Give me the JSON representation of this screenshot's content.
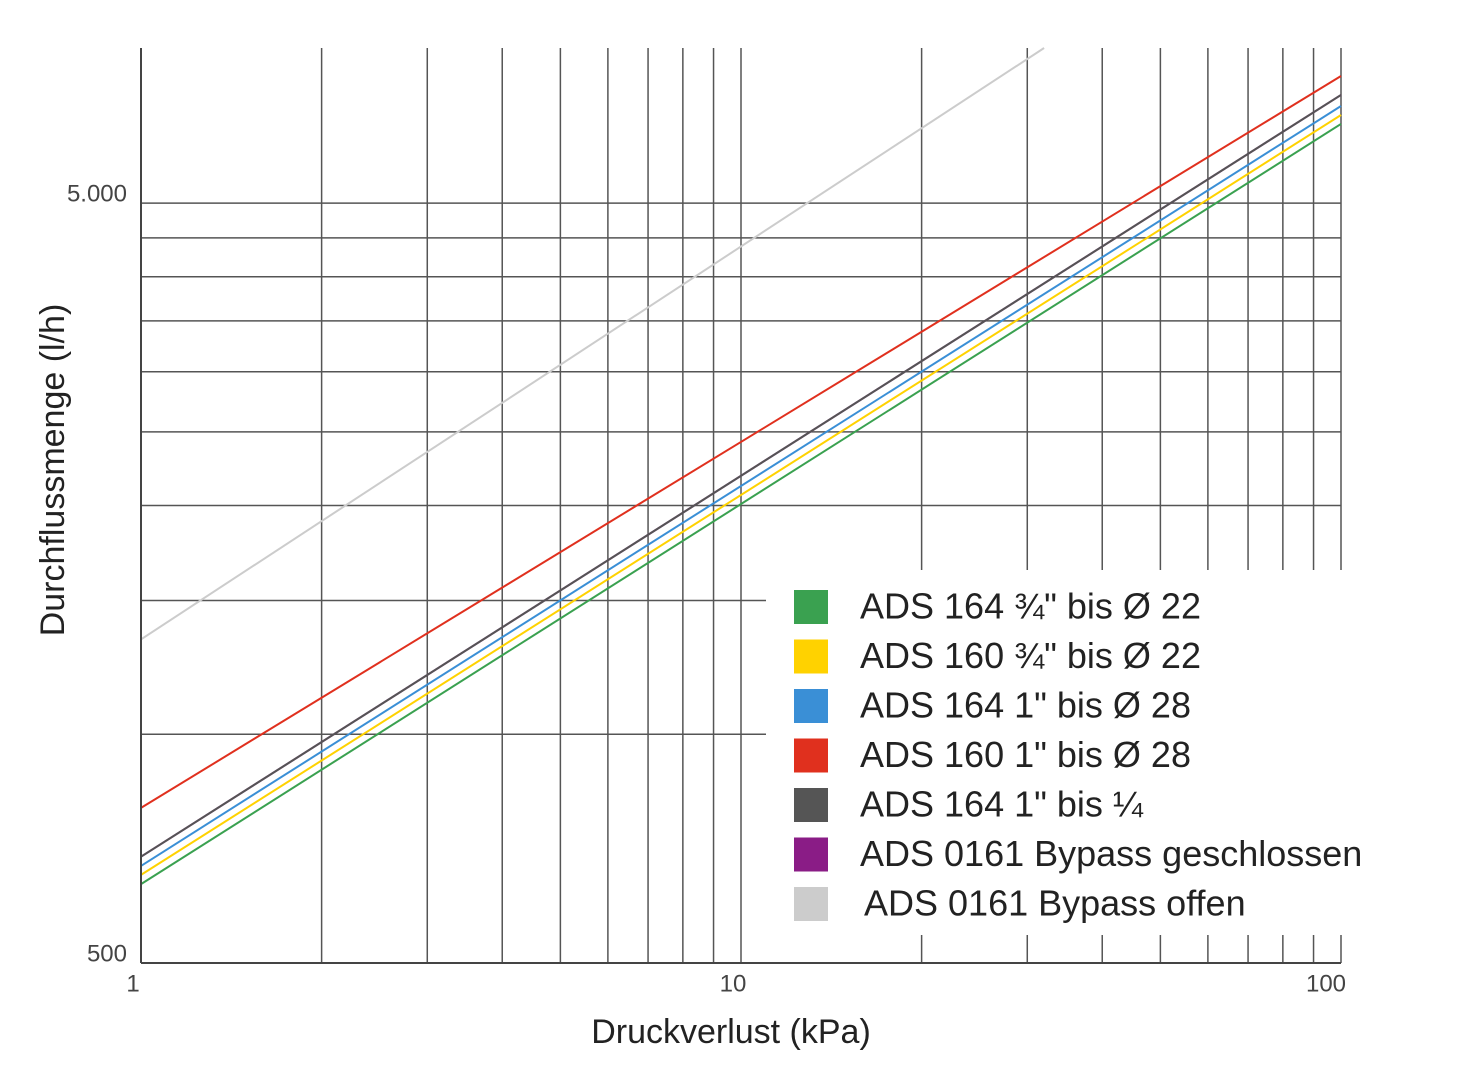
{
  "chart_data": {
    "type": "line",
    "x_label": "Druckverlust (kPa)",
    "y_label": "Durchflussmenge (l/h)",
    "log_x": true,
    "log_y": true,
    "grid": true,
    "xlim": [
      1,
      100
    ],
    "ylim": [
      500,
      8000
    ],
    "xticks": [
      1,
      10,
      100
    ],
    "yticks": [
      500,
      {
        "value": 5000,
        "label": "5.000"
      }
    ],
    "xminor": [
      2,
      3,
      4,
      5,
      6,
      7,
      8,
      9,
      20,
      30,
      40,
      50,
      60,
      70,
      80,
      90
    ],
    "yminor": [
      1000,
      1500,
      2000,
      2500,
      3000,
      3500,
      4000,
      4500
    ],
    "legend": "lower right",
    "series": [
      {
        "name": "ADS 164 ¾\" bis Ø 22",
        "color": "#3aa150",
        "x": [
          1,
          100
        ],
        "values": [
          635,
          6356
        ]
      },
      {
        "name": "ADS 160 ¾\" bis Ø 22",
        "color": "#ffd200",
        "x": [
          1,
          100
        ],
        "values": [
          653,
          6530
        ]
      },
      {
        "name": "ADS 164 1\" bis Ø 28",
        "color": "#3a8fd6",
        "x": [
          1,
          100
        ],
        "values": [
          671,
          6710
        ]
      },
      {
        "name": "ADS 160 1\" bis Ø 28",
        "color": "#e0301e",
        "x": [
          1,
          100
        ],
        "values": [
          800,
          7350
        ]
      },
      {
        "name": "ADS 0161 Bypass geschlossen",
        "color": "#8a1c86",
        "x": [
          1,
          100
        ],
        "values": [
          690,
          6940
        ]
      },
      {
        "name": "ADS 164 1\" bis ¼",
        "color": "#555555",
        "x": [
          1,
          100
        ],
        "values": [
          690,
          6940
        ]
      },
      {
        "name": "ADS 0161 Bypass offen",
        "color": "#cccccc",
        "x": [
          1,
          32
        ],
        "values": [
          1333,
          8000
        ]
      }
    ]
  }
}
